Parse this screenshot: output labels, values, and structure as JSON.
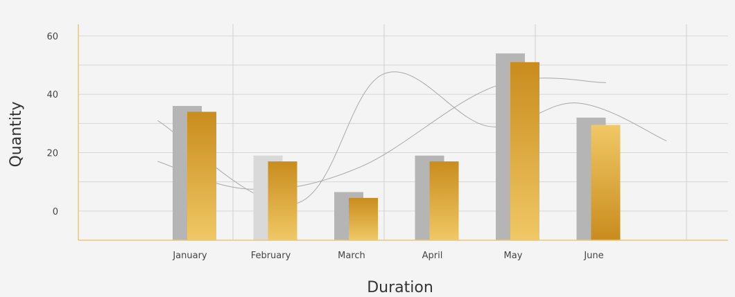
{
  "chart_data": {
    "type": "bar",
    "categories": [
      "January",
      "February",
      "March",
      "April",
      "May",
      "June"
    ],
    "series": [
      {
        "values": [
          36,
          19,
          6.5,
          19,
          54,
          32
        ],
        "color": "#b5b5b5"
      },
      {
        "values": [
          34,
          17,
          4.5,
          17,
          51,
          29.5
        ],
        "color": "#d4a030"
      }
    ],
    "curves": [
      {
        "x": [
          -0.4,
          1.3,
          2.4,
          3.7,
          4.8,
          5.9
        ],
        "y": [
          31,
          2.5,
          47,
          29,
          37,
          24
        ]
      },
      {
        "x": [
          -0.4,
          0.75,
          2.1,
          3.8,
          5.15
        ],
        "y": [
          17,
          7.5,
          15,
          43,
          44
        ]
      }
    ],
    "xlabel": "Duration",
    "ylabel": "Quantity",
    "yticks": [
      0,
      20,
      40,
      60
    ],
    "ylim": [
      -10,
      64
    ],
    "grid": true,
    "legend": "none"
  }
}
